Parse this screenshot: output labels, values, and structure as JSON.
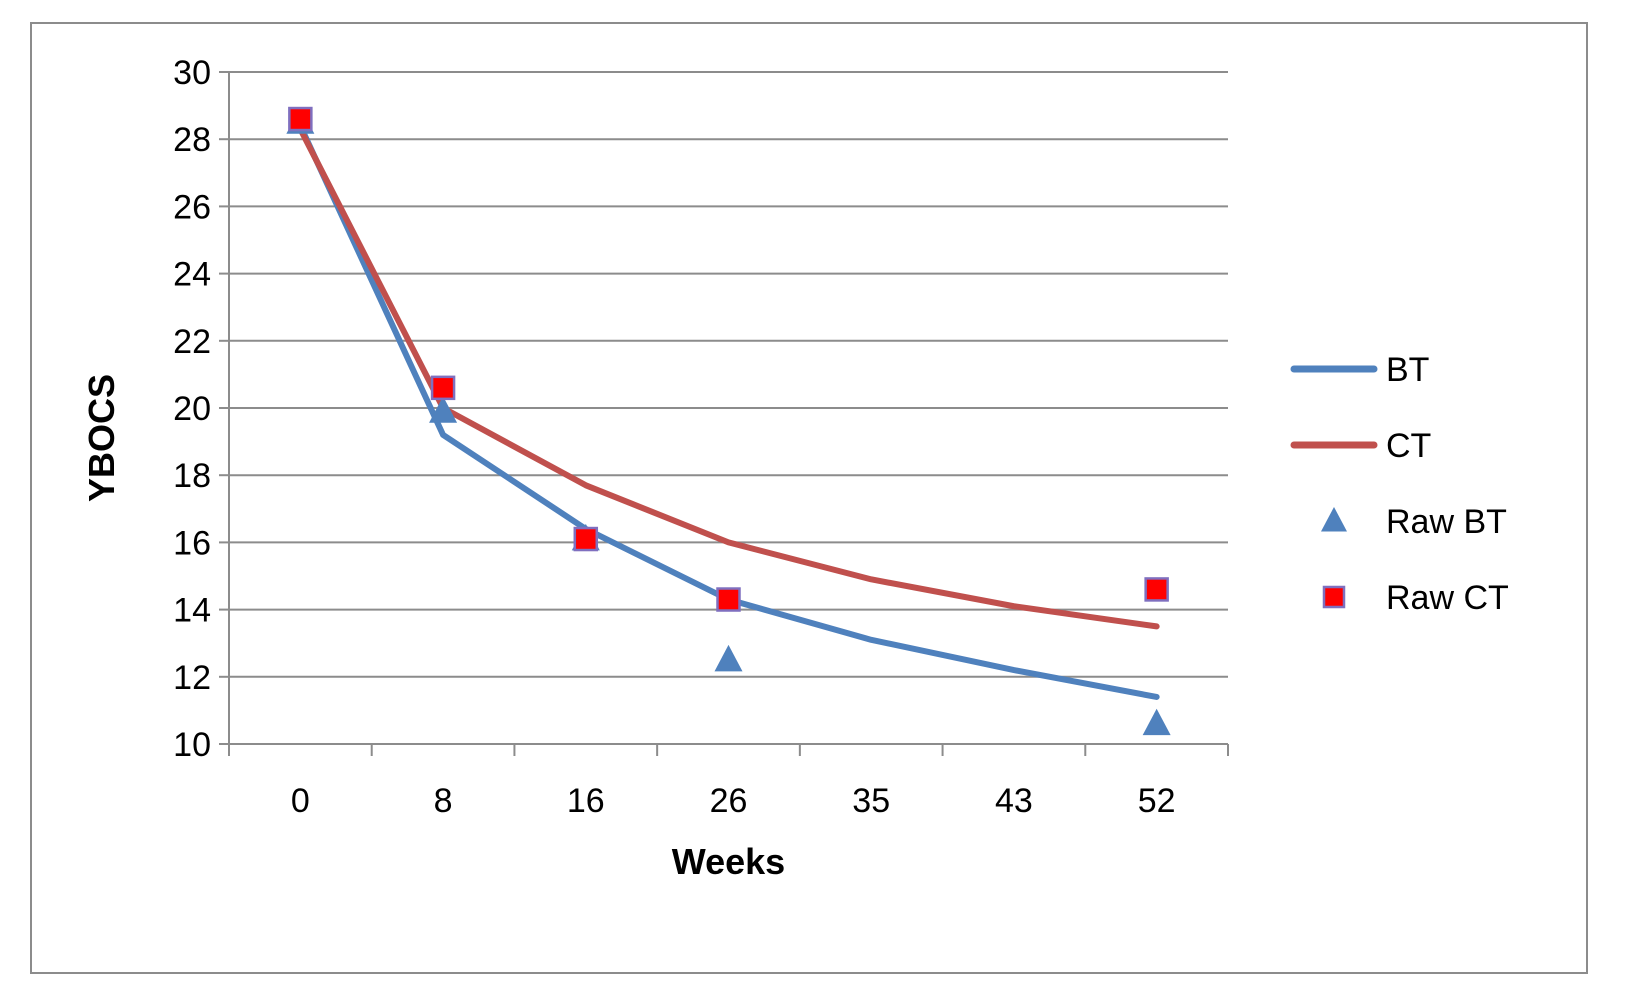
{
  "chart_data": {
    "type": "line",
    "xlabel": "Weeks",
    "ylabel": "YBOCS",
    "categories": [
      "0",
      "8",
      "16",
      "26",
      "35",
      "43",
      "52"
    ],
    "ylim": [
      10,
      30
    ],
    "yticks": [
      10,
      12,
      14,
      16,
      18,
      20,
      22,
      24,
      26,
      28,
      30
    ],
    "grid": true,
    "legend_position": "right",
    "series": [
      {
        "name": "BT",
        "kind": "line",
        "color": "#4f81bd",
        "values": [
          28.4,
          19.2,
          16.4,
          14.3,
          13.1,
          12.2,
          11.4
        ]
      },
      {
        "name": "CT",
        "kind": "line",
        "color": "#c0504d",
        "values": [
          28.3,
          20.0,
          17.7,
          16.0,
          14.9,
          14.1,
          13.5
        ]
      },
      {
        "name": "Raw BT",
        "kind": "marker",
        "marker": "triangle",
        "color": "#4f81bd",
        "values": [
          28.5,
          19.9,
          16.1,
          12.5,
          null,
          null,
          10.6
        ]
      },
      {
        "name": "Raw CT",
        "kind": "marker",
        "marker": "square",
        "color": "#ff0000",
        "edge_color": "#7f6fbf",
        "values": [
          28.6,
          20.6,
          16.1,
          14.3,
          null,
          null,
          14.6
        ]
      }
    ]
  }
}
